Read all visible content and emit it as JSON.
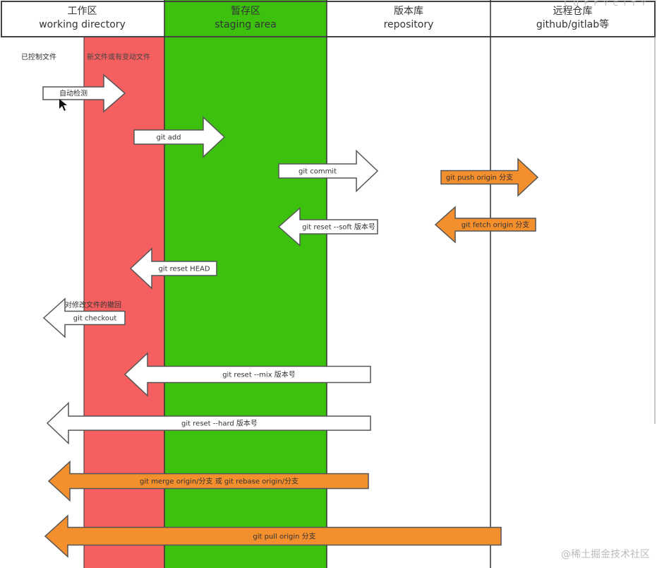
{
  "columns": [
    {
      "title": "工作区",
      "subtitle": "working directory",
      "color": "#ffffff"
    },
    {
      "title": "暂存区",
      "subtitle": "staging area",
      "color": "#3cc20e"
    },
    {
      "title": "版本库",
      "subtitle": "repository",
      "color": "#ffffff"
    },
    {
      "title": "远程仓库",
      "subtitle": "github/gitlab等",
      "color": "#ffffff"
    }
  ],
  "sublabels": {
    "tracked": "已控制文件",
    "new_or_changed": "新文件或有变动文件",
    "new_color": "#f55f5f"
  },
  "arrows": [
    {
      "label": "自动检测",
      "direction": "right",
      "color": "#ffffff"
    },
    {
      "label": "git add",
      "direction": "right",
      "color": "#ffffff"
    },
    {
      "label": "git commit",
      "direction": "right",
      "color": "#ffffff"
    },
    {
      "label": "git push origin 分支",
      "direction": "right",
      "color": "#f48f2e"
    },
    {
      "label": "git reset --soft 版本号",
      "direction": "left",
      "color": "#ffffff"
    },
    {
      "label": "git fetch origin  分支",
      "direction": "left",
      "color": "#f48f2e"
    },
    {
      "label": "git reset HEAD",
      "direction": "left",
      "color": "#ffffff"
    },
    {
      "label": "git checkout",
      "direction": "left",
      "color": "#ffffff",
      "note": "对修改文件的撤回"
    },
    {
      "label": "git reset --mix 版本号",
      "direction": "left",
      "color": "#ffffff"
    },
    {
      "label": "git reset --hard 版本号",
      "direction": "left",
      "color": "#ffffff"
    },
    {
      "label": "git merge origin/分支 或 git rebase origin/分支",
      "direction": "left",
      "color": "#f48f2e"
    },
    {
      "label": "git pull origin  分支",
      "direction": "left",
      "color": "#f48f2e"
    }
  ],
  "watermark": "@稀土掘金技术社区",
  "top_watermark": "LUFFYCITY"
}
